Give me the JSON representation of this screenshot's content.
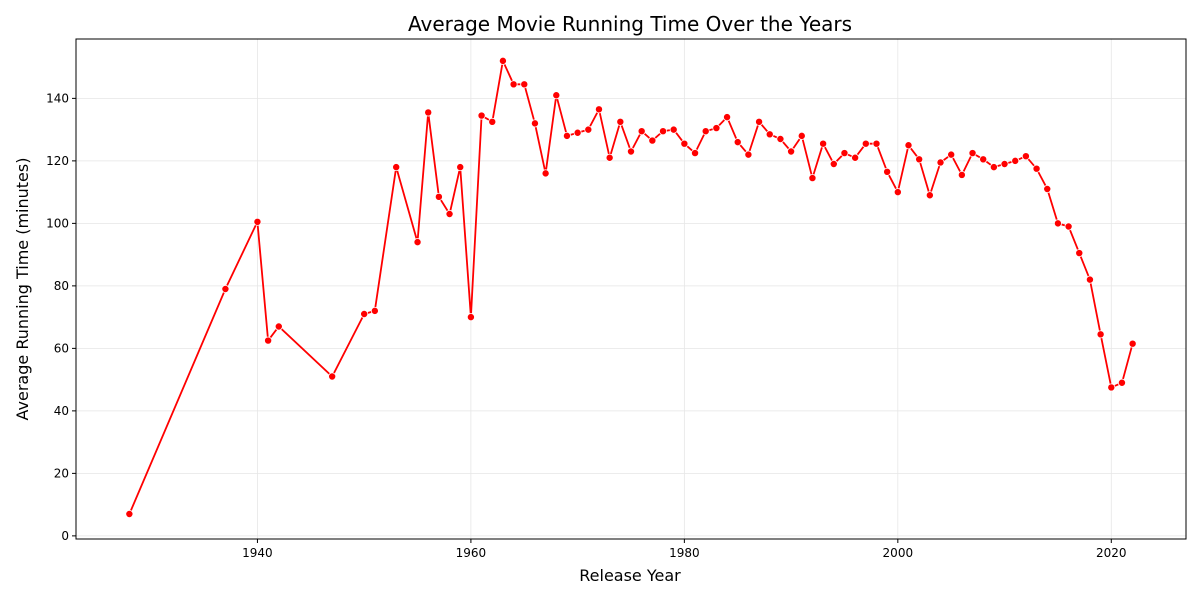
{
  "chart_data": {
    "type": "line",
    "title": "Average Movie Running Time Over the Years",
    "xlabel": "Release Year",
    "ylabel": "Average Running Time (minutes)",
    "xlim": [
      1923,
      2027
    ],
    "ylim": [
      -1,
      159
    ],
    "xticks": [
      1940,
      1960,
      1980,
      2000,
      2020
    ],
    "yticks": [
      0,
      20,
      40,
      60,
      80,
      100,
      120,
      140
    ],
    "grid": true,
    "line_color": "#ff0000",
    "marker_color": "#ff0000",
    "x": [
      1928,
      1937,
      1940,
      1941,
      1942,
      1947,
      1950,
      1951,
      1953,
      1955,
      1956,
      1957,
      1958,
      1959,
      1960,
      1961,
      1962,
      1963,
      1964,
      1965,
      1966,
      1967,
      1968,
      1969,
      1970,
      1971,
      1972,
      1973,
      1974,
      1975,
      1976,
      1977,
      1978,
      1979,
      1980,
      1981,
      1982,
      1983,
      1984,
      1985,
      1986,
      1987,
      1988,
      1989,
      1990,
      1991,
      1992,
      1993,
      1994,
      1995,
      1996,
      1997,
      1998,
      1999,
      2000,
      2001,
      2002,
      2003,
      2004,
      2005,
      2006,
      2007,
      2008,
      2009,
      2010,
      2011,
      2012,
      2013,
      2014,
      2015,
      2016,
      2017,
      2018,
      2019,
      2020,
      2021,
      2022
    ],
    "y": [
      7,
      79,
      100.5,
      62.5,
      67,
      51,
      71,
      72,
      118,
      94,
      135.5,
      108.5,
      103,
      118,
      70,
      134.5,
      132.5,
      152,
      144.5,
      144.5,
      132,
      116,
      141,
      128,
      129,
      130,
      136.5,
      121,
      132.5,
      123,
      129.5,
      126.5,
      129.5,
      130,
      125.5,
      122.5,
      129.5,
      130.5,
      134,
      126,
      122,
      132.5,
      128.5,
      127,
      123,
      128,
      114.5,
      125.5,
      119,
      122.5,
      121,
      125.5,
      125.5,
      116.5,
      110,
      125,
      120.5,
      109,
      119.5,
      122,
      115.5,
      122.5,
      120.5,
      118,
      119,
      120,
      121.5,
      117.5,
      111,
      100,
      99,
      90.5,
      82,
      64.5,
      47.5,
      49,
      61.5
    ]
  }
}
